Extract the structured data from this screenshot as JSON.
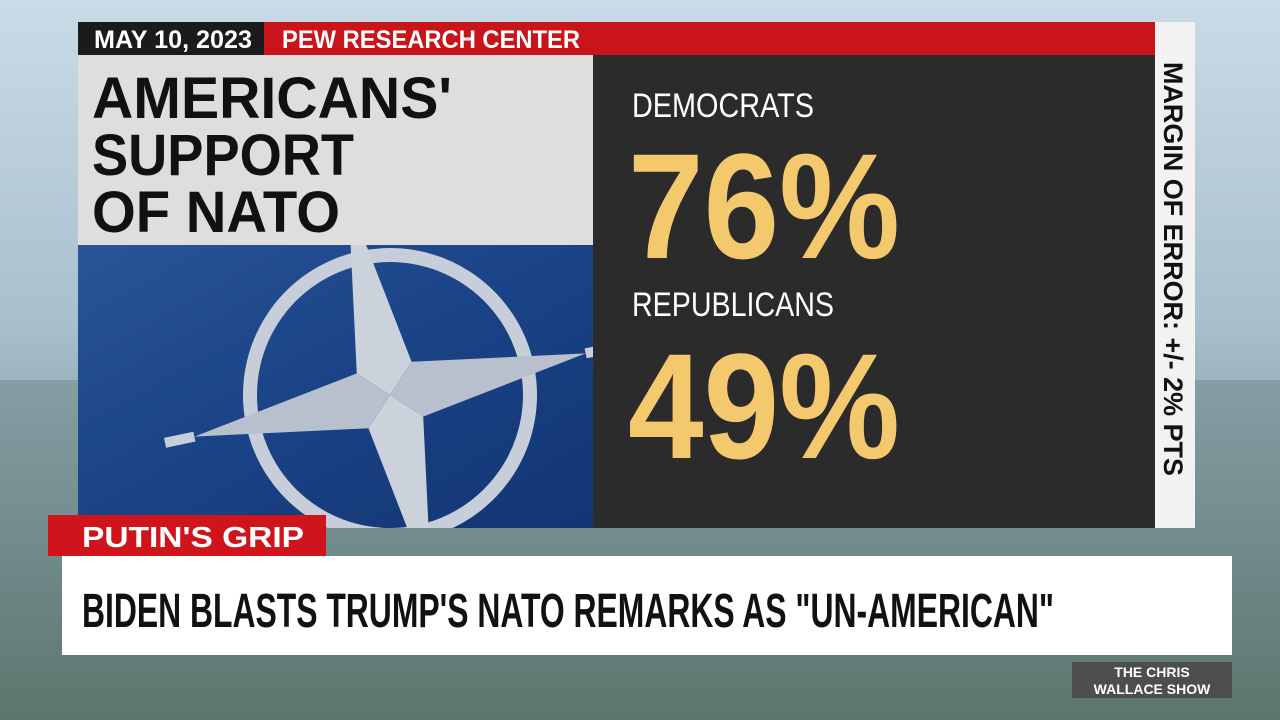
{
  "header": {
    "date": "MAY 10, 2023",
    "source": "PEW RESEARCH CENTER"
  },
  "title_lines": [
    "AMERICANS'",
    "SUPPORT",
    "OF NATO"
  ],
  "stats": [
    {
      "label": "DEMOCRATS",
      "value": "76%"
    },
    {
      "label": "REPUBLICANS",
      "value": "49%"
    }
  ],
  "margin_note": "MARGIN OF ERROR: +/- 2% PTS",
  "lower_third": {
    "tag": "PUTIN'S GRIP",
    "headline": "BIDEN BLASTS TRUMP'S NATO REMARKS AS \"UN-AMERICAN\""
  },
  "show_logo": [
    "THE CHRIS",
    "WALLACE SHOW"
  ]
}
